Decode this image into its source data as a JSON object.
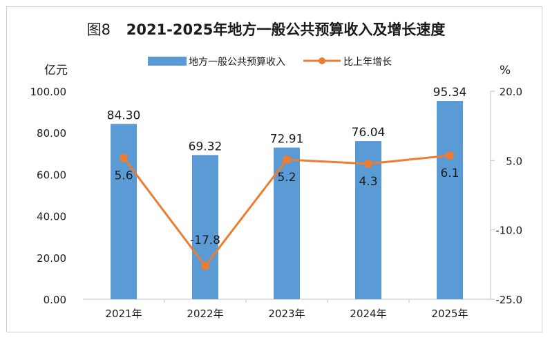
{
  "chart_data": {
    "type": "bar+line",
    "title_prefix": "图8",
    "title": "2021-2025年地方一般公共预算收入及增长速度",
    "categories": [
      "2021年",
      "2022年",
      "2023年",
      "2024年",
      "2025年"
    ],
    "bar_series": {
      "name": "地方一般公共预算收入",
      "values": [
        84.3,
        69.32,
        72.91,
        76.04,
        95.34
      ],
      "labels": [
        "84.30",
        "69.32",
        "72.91",
        "76.04",
        "95.34"
      ],
      "color": "#5b9bd5"
    },
    "line_series": {
      "name": "比上年增长",
      "values": [
        5.6,
        -17.8,
        5.2,
        4.3,
        6.1
      ],
      "labels": [
        "5.6",
        "-17.8",
        "5.2",
        "4.3",
        "6.1"
      ],
      "color": "#ed7d31"
    },
    "left_axis": {
      "unit": "亿元",
      "min": 0,
      "max": 100,
      "ticks": [
        0,
        20,
        40,
        60,
        80,
        100
      ],
      "tick_labels": [
        "0.00",
        "20.00",
        "40.00",
        "60.00",
        "80.00",
        "100.00"
      ]
    },
    "right_axis": {
      "unit": "%",
      "min": -25,
      "max": 20,
      "ticks": [
        -25,
        -10,
        5,
        20
      ],
      "tick_labels": [
        "-25.0",
        "-10.0",
        "5.0",
        "20.0"
      ]
    },
    "legend_position": "top-center"
  }
}
